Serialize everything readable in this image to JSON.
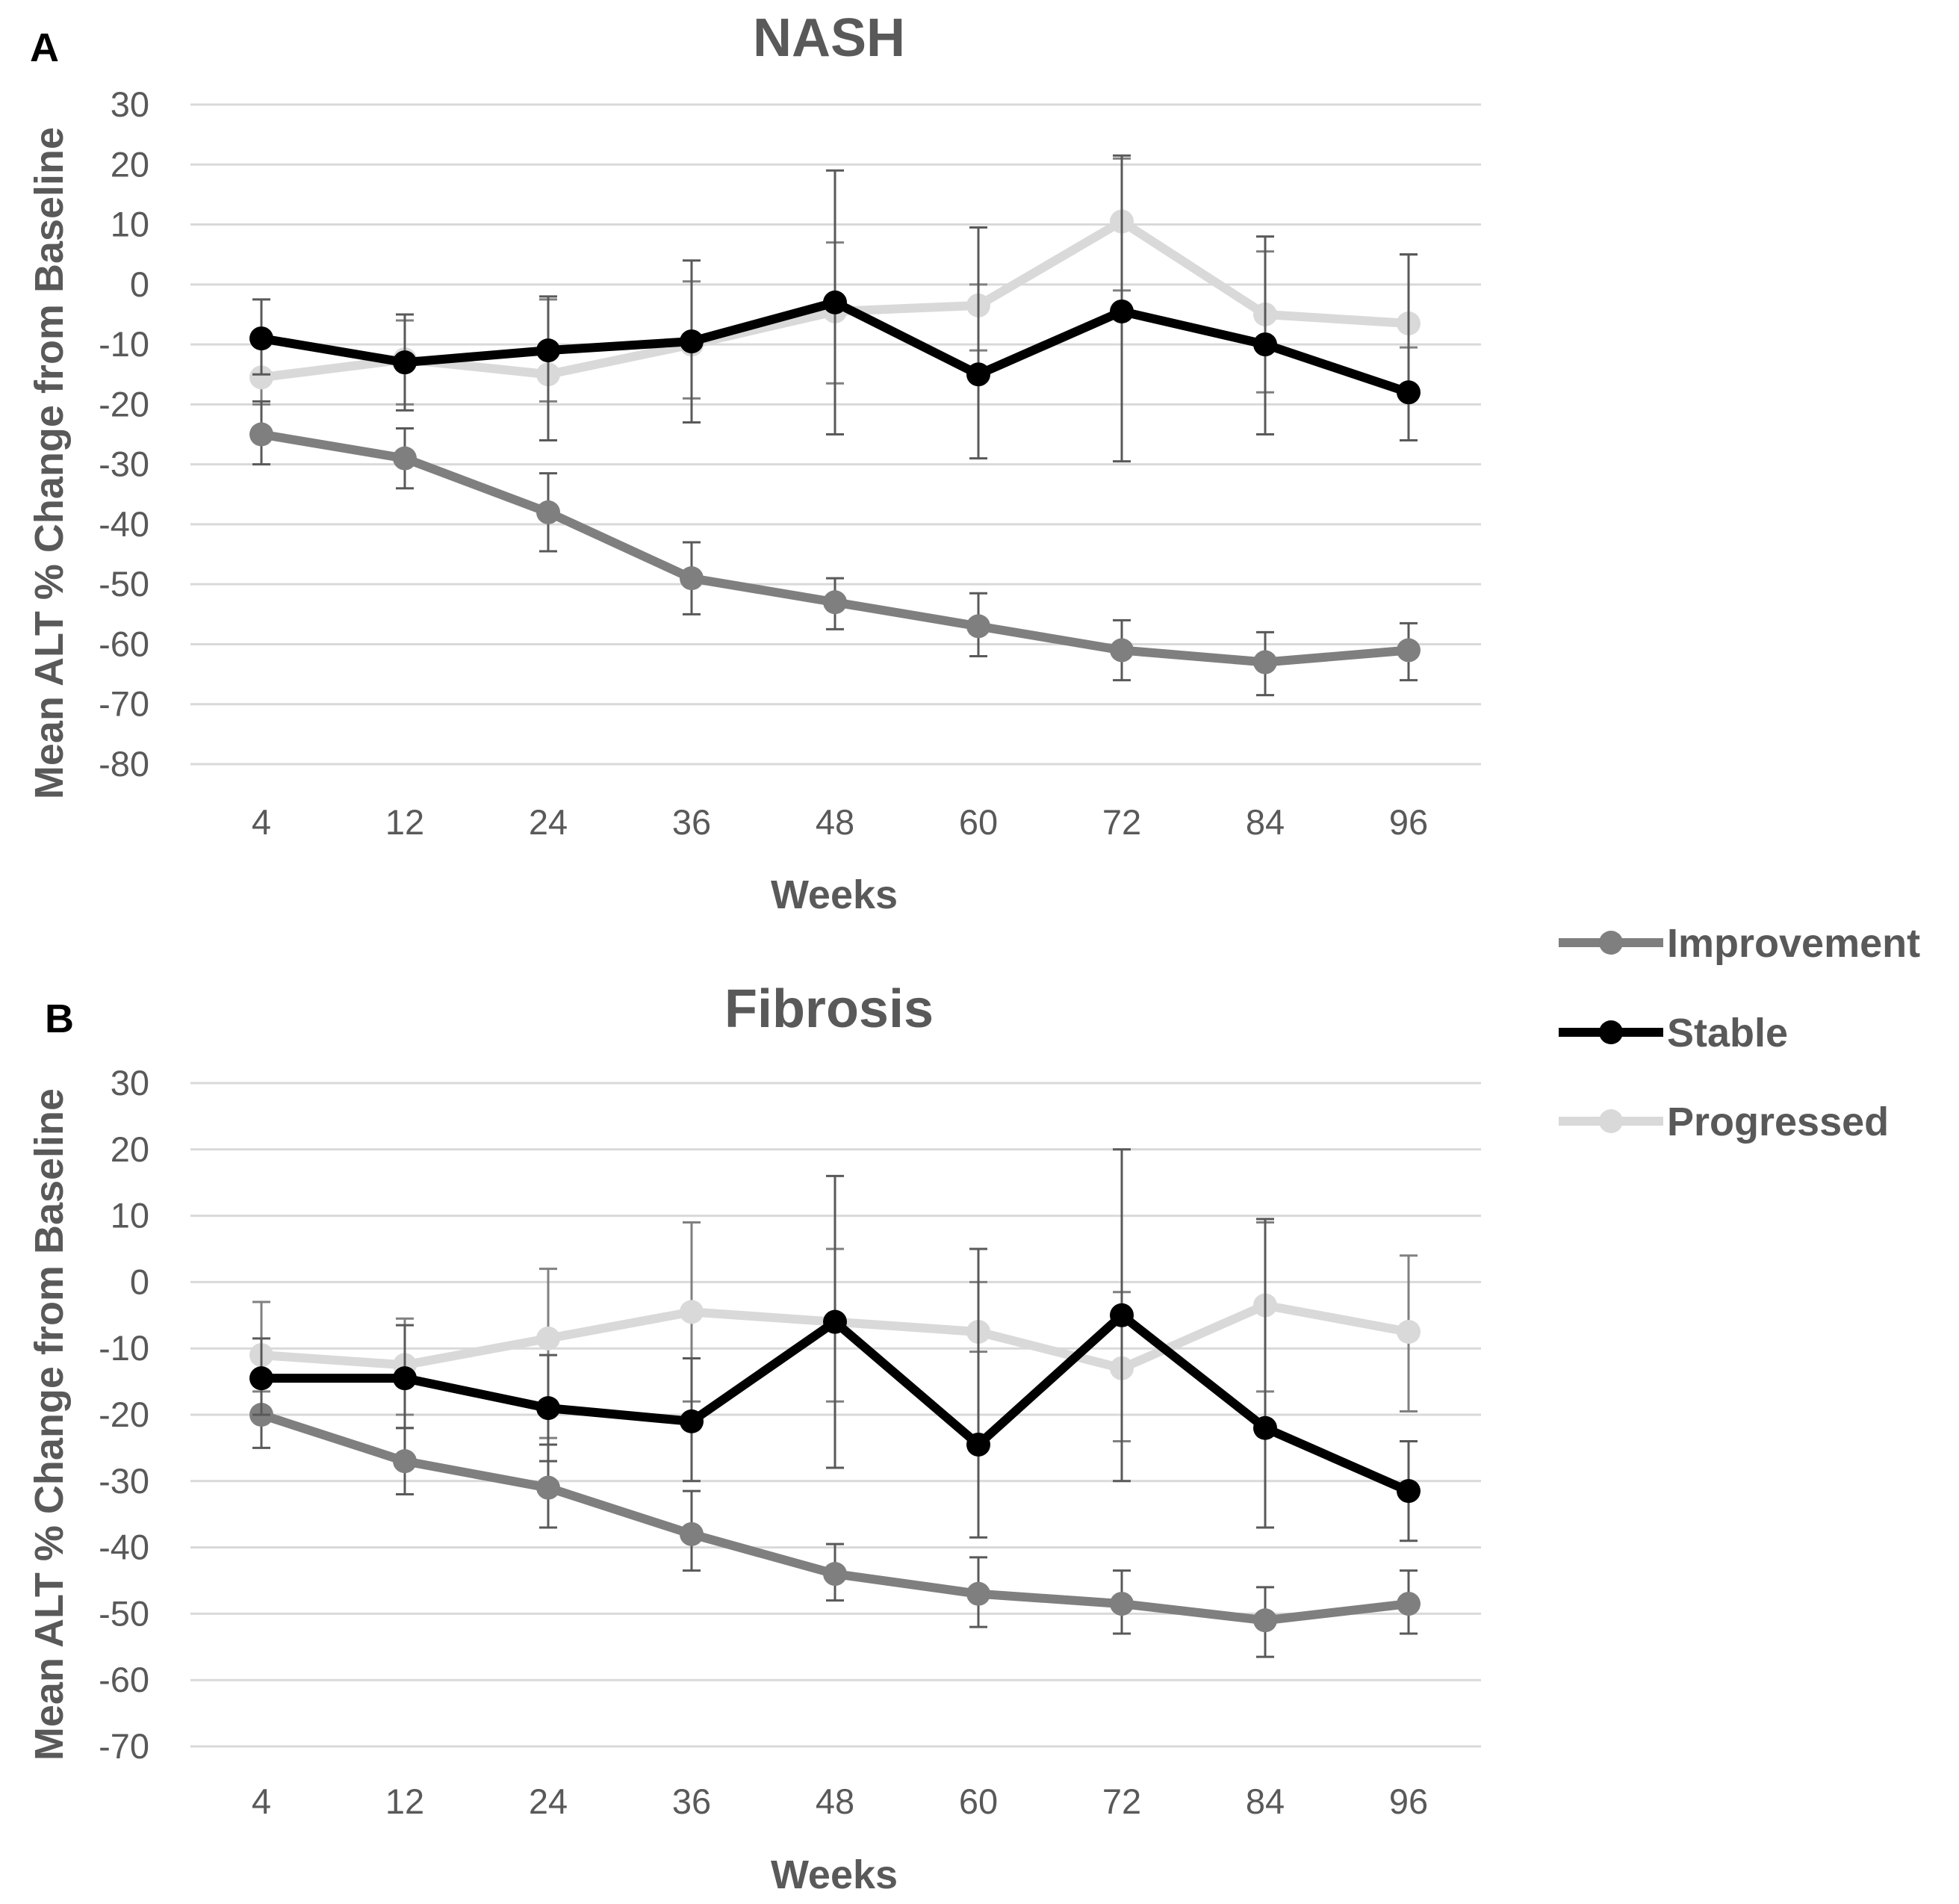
{
  "legend": {
    "position": "right",
    "items": [
      {
        "name": "Improvement",
        "color": "#7f7f7f"
      },
      {
        "name": "Stable",
        "color": "#000000"
      },
      {
        "name": "Progressed",
        "color": "#d9d9d9"
      }
    ]
  },
  "chart_data": [
    {
      "type": "line",
      "panel_label": "A",
      "title": "NASH",
      "xlabel": "Weeks",
      "ylabel": "Mean ALT % Change from Baseline",
      "categories": [
        "4",
        "12",
        "24",
        "36",
        "48",
        "60",
        "72",
        "84",
        "96"
      ],
      "yticks": [
        "30",
        "20",
        "10",
        "0",
        "-10",
        "-20",
        "-30",
        "-40",
        "-50",
        "-60",
        "-70",
        "-80"
      ],
      "ylim": [
        -80,
        30
      ],
      "grid": true,
      "error_bars": true,
      "series": [
        {
          "name": "Improvement",
          "color": "#7f7f7f",
          "values": [
            -25,
            -29,
            -38,
            -49,
            -53,
            -57,
            -61,
            -63,
            -61
          ],
          "err_low": [
            -30,
            -34,
            -44.5,
            -55,
            -57.5,
            -62,
            -66,
            -68.5,
            -66
          ],
          "err_high": [
            -19.5,
            -24,
            -31.5,
            -43,
            -49,
            -51.5,
            -56,
            -58,
            -56.5
          ]
        },
        {
          "name": "Stable",
          "color": "#000000",
          "values": [
            -9,
            -13,
            -11,
            -9.5,
            -3,
            -15,
            -4.5,
            -10,
            -18
          ],
          "err_low": [
            -15,
            -21,
            -26,
            -23,
            -25,
            -29,
            -29.5,
            -25,
            -26
          ],
          "err_high": [
            -2.5,
            -5,
            -2,
            4,
            19,
            9.5,
            21.5,
            8,
            5
          ]
        },
        {
          "name": "Progressed",
          "color": "#d9d9d9",
          "values": [
            -15.5,
            -12.5,
            -15,
            -10,
            -4.5,
            -3.5,
            10.5,
            -5,
            -6.5
          ],
          "err_low": [
            -20,
            -20,
            -19.5,
            -19,
            -16.5,
            -11,
            -1,
            -18,
            -10.5
          ],
          "err_high": [
            -9.5,
            -6,
            -2.5,
            0.5,
            7,
            0,
            21,
            5.5,
            5
          ]
        }
      ]
    },
    {
      "type": "line",
      "panel_label": "B",
      "title": "Fibrosis",
      "xlabel": "Weeks",
      "ylabel": "Mean ALT % Change from Baseline",
      "categories": [
        "4",
        "12",
        "24",
        "36",
        "48",
        "60",
        "72",
        "84",
        "96"
      ],
      "yticks": [
        "30",
        "20",
        "10",
        "0",
        "-10",
        "-20",
        "-30",
        "-40",
        "-50",
        "-60",
        "-70"
      ],
      "ylim": [
        -70,
        30
      ],
      "grid": true,
      "error_bars": true,
      "series": [
        {
          "name": "Improvement",
          "color": "#7f7f7f",
          "values": [
            -20,
            -27,
            -31,
            -38,
            -44,
            -47,
            -48.5,
            -51,
            -48.5
          ],
          "err_low": [
            -25,
            -32,
            -37,
            -43.5,
            -48,
            -52,
            -53,
            -56.5,
            -53
          ],
          "err_high": [
            -15,
            -22,
            -24.5,
            -31.5,
            -39.5,
            -41.5,
            -43.5,
            -46,
            -43.5
          ]
        },
        {
          "name": "Stable",
          "color": "#000000",
          "values": [
            -14.5,
            -14.5,
            -19,
            -21,
            -6,
            -24.5,
            -5,
            -22,
            -31.5
          ],
          "err_low": [
            -20,
            -22,
            -27,
            -30,
            -28,
            -38.5,
            -30,
            -37,
            -39
          ],
          "err_high": [
            -8.5,
            -6.5,
            -11,
            -11.5,
            16,
            5,
            20,
            9.5,
            -24
          ]
        },
        {
          "name": "Progressed",
          "color": "#d9d9d9",
          "values": [
            -11,
            -12.5,
            -8.5,
            -4.5,
            -6,
            -7.5,
            -13,
            -3.5,
            -7.5
          ],
          "err_low": [
            -16.5,
            -20,
            -23.5,
            -18,
            -18,
            -10.5,
            -24,
            -16.5,
            -19.5
          ],
          "err_high": [
            -3,
            -5.5,
            2,
            9,
            5,
            0,
            -1.5,
            9,
            4
          ]
        }
      ]
    }
  ]
}
